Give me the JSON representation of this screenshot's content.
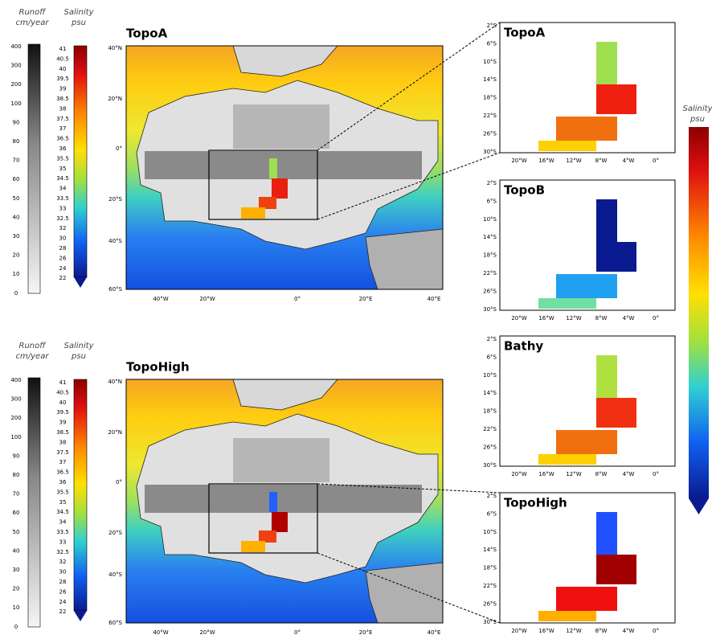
{
  "left_panels": [
    {
      "title": "TopoA",
      "runoff_colorbar": {
        "title": "Runoff",
        "unit": "cm/year",
        "labels": [
          "400",
          "300",
          "200",
          "100",
          "90",
          "80",
          "70",
          "60",
          "50",
          "40",
          "30",
          "20",
          "10",
          "0"
        ]
      },
      "salinity_colorbar": {
        "title": "Salinity",
        "unit": "psu",
        "labels": [
          "41",
          "40.5",
          "40",
          "39.5",
          "39",
          "38.5",
          "38",
          "37.5",
          "37",
          "36.5",
          "36",
          "35.5",
          "35",
          "34.5",
          "34",
          "33.5",
          "33",
          "32.5",
          "32",
          "30",
          "28",
          "26",
          "24",
          "22"
        ]
      },
      "lat_ticks": [
        "40°N",
        "20°N",
        "0°",
        "20°S",
        "40°S",
        "60°S"
      ],
      "lon_ticks": [
        "40°W",
        "20°W",
        "0°",
        "20°E",
        "40°E"
      ]
    },
    {
      "title": "TopoHigh",
      "runoff_colorbar": {
        "title": "Runoff",
        "unit": "cm/year",
        "labels": [
          "400",
          "300",
          "200",
          "100",
          "90",
          "80",
          "70",
          "60",
          "50",
          "40",
          "30",
          "20",
          "10",
          "0"
        ]
      },
      "salinity_colorbar": {
        "title": "Salinity",
        "unit": "psu",
        "labels": [
          "41",
          "40.5",
          "40",
          "39.5",
          "39",
          "38.5",
          "38",
          "37.5",
          "37",
          "36.5",
          "36",
          "35.5",
          "35",
          "34.5",
          "34",
          "33.5",
          "33",
          "32.5",
          "32",
          "30",
          "28",
          "26",
          "24",
          "22"
        ]
      },
      "lat_ticks": [
        "40°N",
        "20°N",
        "0°",
        "20°S",
        "40°S",
        "60°S"
      ],
      "lon_ticks": [
        "40°W",
        "20°W",
        "0°",
        "20°E",
        "40°E"
      ]
    }
  ],
  "right_panels": [
    {
      "title": "TopoA",
      "lat_ticks": [
        "2°S",
        "6°S",
        "10°S",
        "14°S",
        "18°S",
        "22°S",
        "26°S",
        "30°S"
      ],
      "lon_ticks": [
        "20°W",
        "16°W",
        "12°W",
        "8°W",
        "4°W",
        "0°"
      ]
    },
    {
      "title": "TopoB",
      "lat_ticks": [
        "2°S",
        "6°S",
        "10°S",
        "14°S",
        "18°S",
        "22°S",
        "26°S",
        "30°S"
      ],
      "lon_ticks": [
        "20°W",
        "16°W",
        "12°W",
        "8°W",
        "4°W",
        "0°"
      ]
    },
    {
      "title": "Bathy",
      "lat_ticks": [
        "2°S",
        "6°S",
        "10°S",
        "14°S",
        "18°S",
        "22°S",
        "26°S",
        "30°S"
      ],
      "lon_ticks": [
        "20°W",
        "16°W",
        "12°W",
        "8°W",
        "4°W",
        "0°"
      ]
    },
    {
      "title": "TopoHigh",
      "lat_ticks": [
        "2°S",
        "6°S",
        "10°S",
        "14°S",
        "18°S",
        "22°S",
        "26°S",
        "30°S"
      ],
      "lon_ticks": [
        "20°W",
        "16°W",
        "12°W",
        "8°W",
        "4°W",
        "0°"
      ]
    }
  ],
  "right_colorbar": {
    "title": "Salinity",
    "unit": "psu"
  }
}
